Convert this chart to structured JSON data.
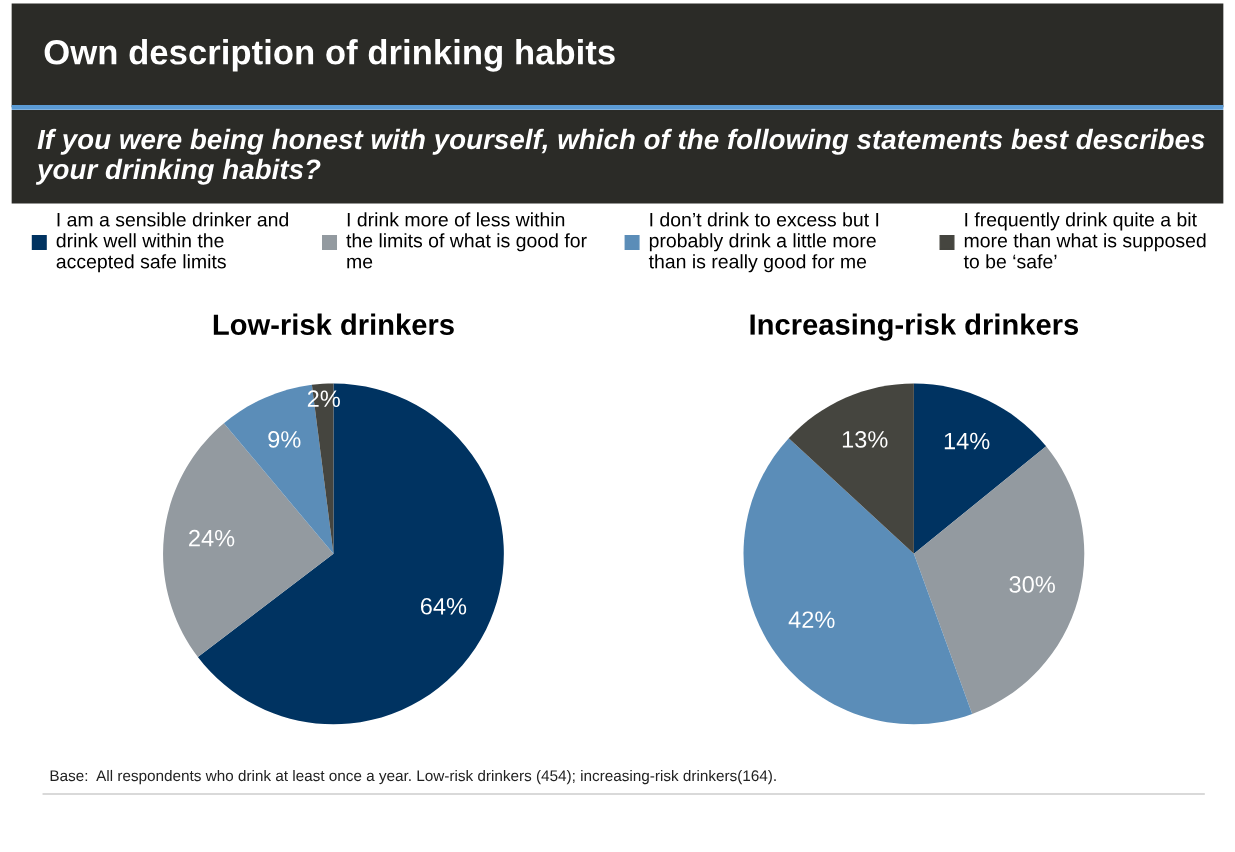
{
  "chart_data": [
    {
      "type": "pie",
      "title": "Low-risk drinkers",
      "legend": "top",
      "categories": [
        "I am a sensible drinker and drink well within the accepted safe limits",
        "I drink more of less within the limits of what is good for me",
        "I don’t drink to excess but I probably drink a little more than is really good for me",
        "I frequently drink quite a bit more than what is supposed to be ‘safe’"
      ],
      "values": [
        64,
        24,
        9,
        2
      ],
      "colors": [
        "#003361",
        "#939aa0",
        "#5b8db8",
        "#45453f"
      ],
      "value_labels": [
        "64%",
        "24%",
        "9%",
        "2%"
      ],
      "annotations": [
        "Own description of drinking habits",
        "If you were being honest with yourself, which of the following statements best describes your drinking habits?",
        "Base:  All respondents who drink at least once a year. Low-risk drinkers (454); increasing-risk drinkers(164)."
      ]
    },
    {
      "type": "pie",
      "title": "Increasing-risk drinkers",
      "categories": [
        null,
        null,
        null,
        null
      ],
      "values": [
        14,
        30,
        42,
        13
      ],
      "colors": [
        "#003361",
        "#939aa0",
        "#5b8db8",
        "#45453f"
      ],
      "value_labels": [
        "14%",
        "30%",
        "42%",
        "13%"
      ]
    }
  ]
}
